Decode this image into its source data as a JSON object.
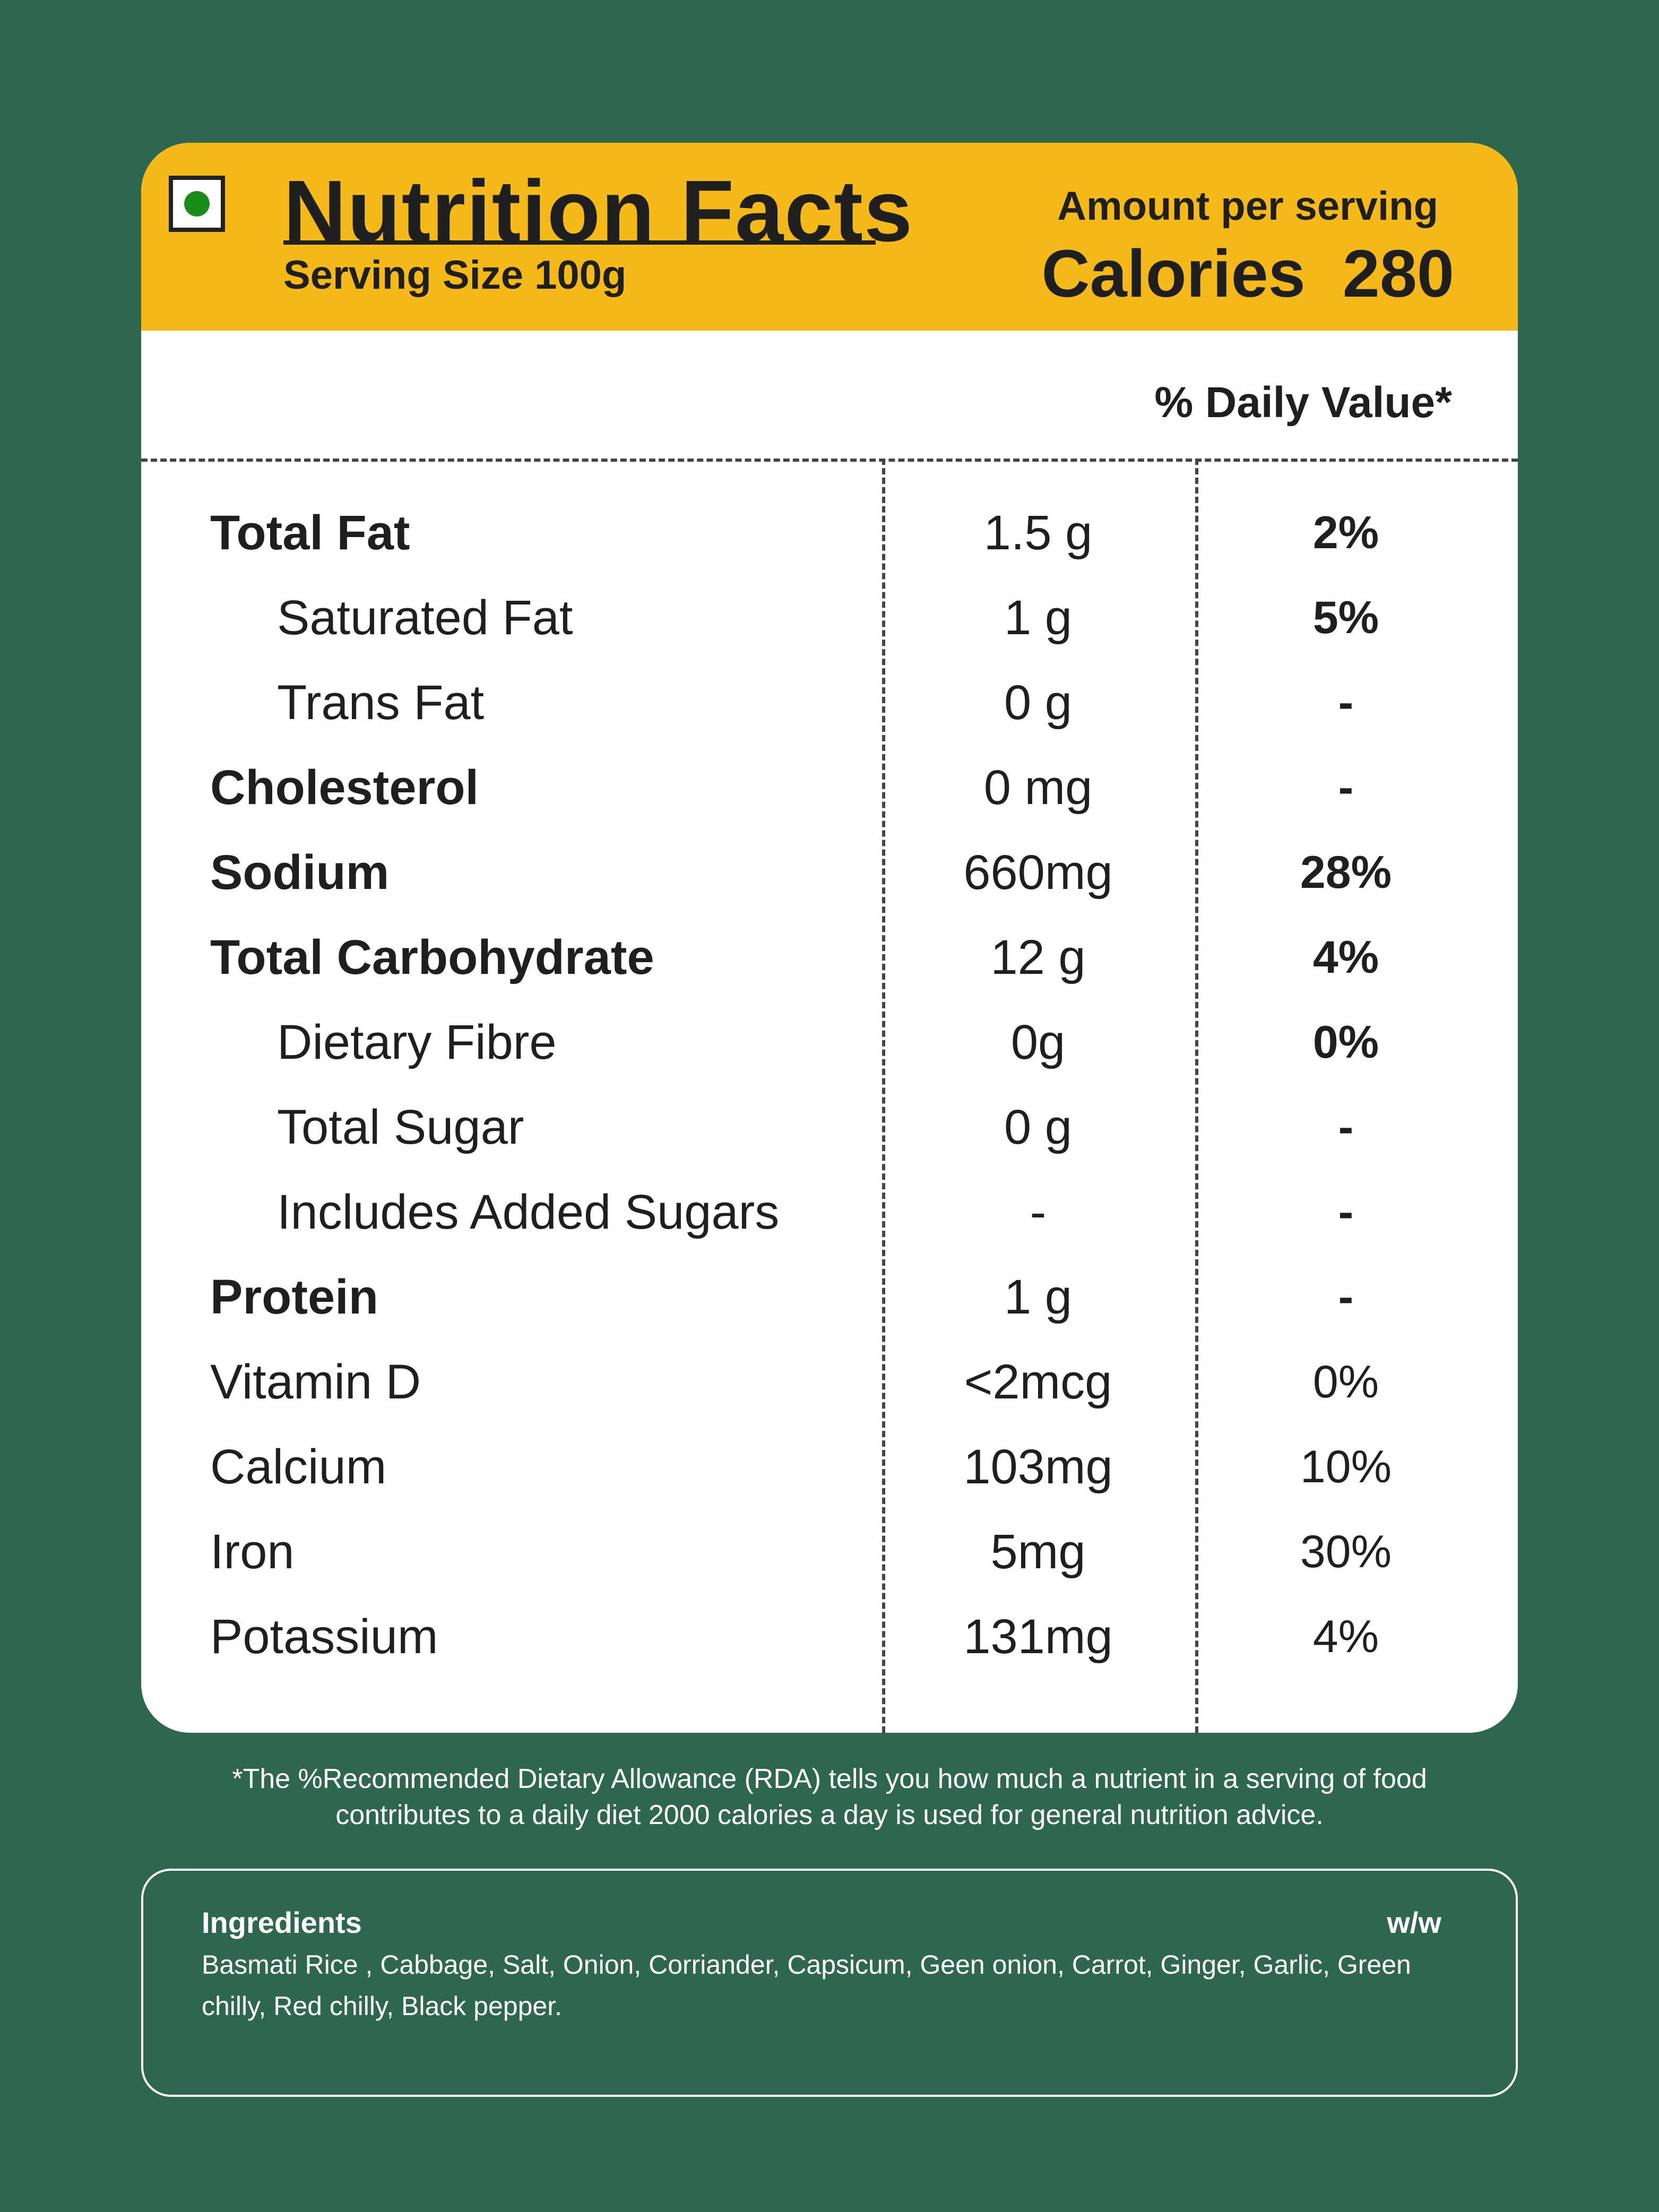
{
  "header": {
    "title": "Nutrition Facts",
    "serving_size": "Serving Size  100g",
    "amount_per_serving": "Amount per serving",
    "calories": "Calories  280"
  },
  "daily_value_header": "% Daily Value*",
  "rows": [
    {
      "name": "Total Fat",
      "amount": "1.5 g",
      "dv": "2%",
      "bold": true,
      "indent": false,
      "dv_bold": true
    },
    {
      "name": "Saturated Fat",
      "amount": "1 g",
      "dv": "5%",
      "bold": false,
      "indent": true,
      "dv_bold": true
    },
    {
      "name": "Trans Fat",
      "amount": "0 g",
      "dv": "-",
      "bold": false,
      "indent": true,
      "dv_bold": true
    },
    {
      "name": "Cholesterol",
      "amount": "0 mg",
      "dv": "-",
      "bold": true,
      "indent": false,
      "dv_bold": true
    },
    {
      "name": "Sodium",
      "amount": "660mg",
      "dv": "28%",
      "bold": true,
      "indent": false,
      "dv_bold": true
    },
    {
      "name": "Total Carbohydrate",
      "amount": "12 g",
      "dv": "4%",
      "bold": true,
      "indent": false,
      "dv_bold": true
    },
    {
      "name": "Dietary Fibre",
      "amount": "0g",
      "dv": "0%",
      "bold": false,
      "indent": true,
      "dv_bold": true
    },
    {
      "name": "Total Sugar",
      "amount": "0 g",
      "dv": "-",
      "bold": false,
      "indent": true,
      "dv_bold": true
    },
    {
      "name": "Includes Added Sugars",
      "amount": "-",
      "dv": "-",
      "bold": false,
      "indent": true,
      "dv_bold": true
    },
    {
      "name": "Protein",
      "amount": "1 g",
      "dv": "-",
      "bold": true,
      "indent": false,
      "dv_bold": true
    },
    {
      "name": "Vitamin D",
      "amount": "<2mcg",
      "dv": "0%",
      "bold": false,
      "indent": false,
      "dv_bold": false
    },
    {
      "name": "Calcium",
      "amount": "103mg",
      "dv": "10%",
      "bold": false,
      "indent": false,
      "dv_bold": false
    },
    {
      "name": "Iron",
      "amount": "5mg",
      "dv": "30%",
      "bold": false,
      "indent": false,
      "dv_bold": false
    },
    {
      "name": "Potassium",
      "amount": "131mg",
      "dv": "4%",
      "bold": false,
      "indent": false,
      "dv_bold": false
    }
  ],
  "footnote": "*The %Recommended Dietary Allowance (RDA) tells you how much a nutrient in a serving of food\ncontributes to a daily diet 2000 calories a day is used for general nutrition advice.",
  "ingredients": {
    "title": "Ingredients",
    "unit": "w/w",
    "text": "Basmati Rice , Cabbage, Salt, Onion, Corriander, Capsicum, Geen onion, Carrot, Ginger, Garlic, Green chilly, Red chilly, Black pepper."
  },
  "colors": {
    "background": "#2e6650",
    "header": "#f5b91b",
    "veg_mark": "#1a8c1a"
  }
}
